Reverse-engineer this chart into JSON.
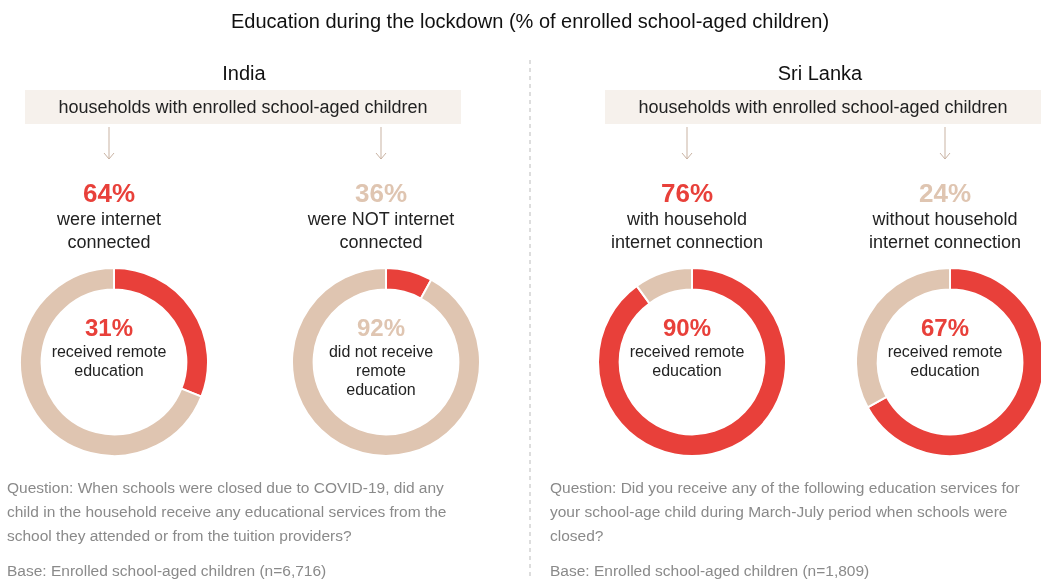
{
  "chart_data": [
    {
      "type": "donut",
      "title": "64%",
      "subtitle": "were internet connected",
      "categories": [
        "received remote education",
        null
      ],
      "values": [
        31,
        69
      ],
      "value_labels": [
        "31%",
        null
      ],
      "colors": [
        "#e8403a",
        "#dfc5b1"
      ],
      "annotations": [
        "Education during the lockdown (% of enrolled school-aged children)",
        "India",
        "households with enrolled school-aged children",
        "Question: When schools were closed due to COVID-19, did any child in the household receive any educational services from the school they attended or from the tuition providers?",
        "Base: Enrolled school-aged children (n=6,716)"
      ]
    },
    {
      "type": "donut",
      "title": "36%",
      "subtitle": "were NOT internet connected",
      "categories": [
        null,
        "did not receive remote education"
      ],
      "values": [
        8,
        92
      ],
      "value_labels": [
        null,
        "92%"
      ],
      "colors": [
        "#e8403a",
        "#dfc5b1"
      ]
    },
    {
      "type": "donut",
      "title": "76%",
      "subtitle": "with household internet connection",
      "categories": [
        "received remote education",
        null
      ],
      "values": [
        90,
        10
      ],
      "value_labels": [
        "90%",
        null
      ],
      "colors": [
        "#e8403a",
        "#dfc5b1"
      ],
      "annotations": [
        "Sri Lanka",
        "households with enrolled school-aged children",
        "Question: Did you receive any of the following education services for your school-age child during March-July period when schools were closed?",
        "Base: Enrolled school-aged children (n=1,809)"
      ]
    },
    {
      "type": "donut",
      "title": "24%",
      "subtitle": "without household internet connection",
      "categories": [
        "received remote education",
        null
      ],
      "values": [
        67,
        33
      ],
      "value_labels": [
        "67%",
        null
      ],
      "colors": [
        "#e8403a",
        "#dfc5b1"
      ]
    }
  ]
}
